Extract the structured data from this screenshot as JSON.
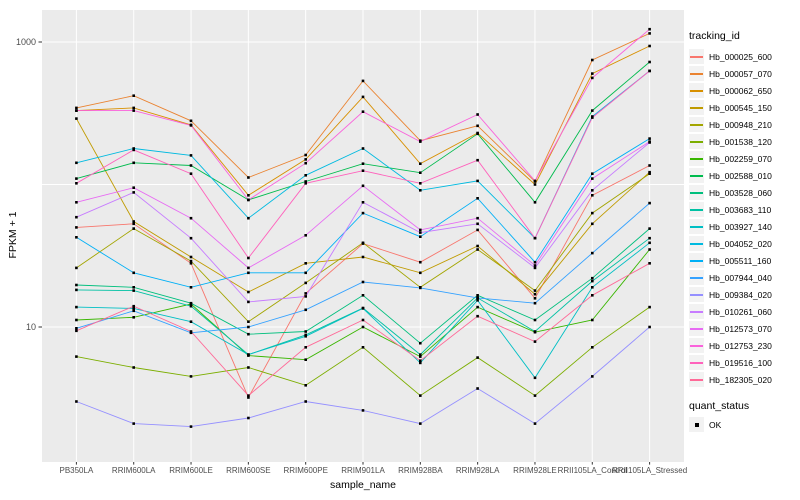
{
  "figure": {
    "background": "#FFFFFF",
    "panel_background": "#EBEBEB",
    "gridline_color": "#FFFFFF",
    "tick_label_color": "#4D4D4D",
    "axis_title_color": "#000000",
    "point_color": "#000000",
    "legend_key_background": "#F2F2F2"
  },
  "chart_data": {
    "type": "line",
    "title": "",
    "xlabel": "sample_name",
    "ylabel": "FPKM + 1",
    "y_scale": "log10",
    "y_tick_labels": [
      "1000",
      "10"
    ],
    "y_tick_values": [
      1000,
      10
    ],
    "y_gridlines": [
      10,
      100,
      1000
    ],
    "ylim": [
      1.1,
      1650
    ],
    "grid": true,
    "legend_position": "right",
    "legend_title": "tracking_id",
    "legend2_title": "quant_status",
    "legend2_items": [
      {
        "label": "OK",
        "marker": "black-square"
      }
    ],
    "point_marker": "black-square",
    "categories": [
      "PB350LA",
      "RRIM600LA",
      "RRIM600LE",
      "RRIM600SE",
      "RRIM600PE",
      "RRIM901LA",
      "RRIM928BA",
      "RRIM928LA",
      "RRIM928LE",
      "RRII105LA_Control",
      "RRII105LA_Stressed"
    ],
    "series": [
      {
        "name": "Hb_000025_600",
        "color": "#F8766D",
        "values": [
          50,
          53,
          28,
          3.2,
          17.2,
          38.5,
          28.5,
          48,
          15.9,
          84,
          136
        ]
      },
      {
        "name": "Hb_000057_070",
        "color": "#EA8331",
        "values": [
          345,
          420,
          280,
          112,
          161,
          533,
          203,
          258,
          105,
          748,
          1150
        ]
      },
      {
        "name": "Hb_000062_650",
        "color": "#D89000",
        "values": [
          330,
          345,
          262,
          84,
          150,
          412,
          140,
          230,
          100,
          600,
          938
        ]
      },
      {
        "name": "Hb_000545_150",
        "color": "#C09B00",
        "values": [
          290,
          55,
          31,
          17.6,
          28,
          31,
          24,
          37,
          17,
          53,
          122
        ]
      },
      {
        "name": "Hb_000948_210",
        "color": "#A3A500",
        "values": [
          26,
          49,
          29,
          10.9,
          20.4,
          39,
          19,
          35,
          18,
          63,
          119
        ]
      },
      {
        "name": "Hb_001538_120",
        "color": "#7CAE00",
        "values": [
          6.2,
          5.2,
          4.5,
          5.2,
          3.9,
          7.2,
          3.3,
          6.1,
          3.3,
          7.2,
          13.8
        ]
      },
      {
        "name": "Hb_002259_070",
        "color": "#39B600",
        "values": [
          11.2,
          11.7,
          14.5,
          6.3,
          5.9,
          10,
          6.2,
          13.8,
          9.2,
          11.2,
          35
        ]
      },
      {
        "name": "Hb_002588_010",
        "color": "#00BB4E",
        "values": [
          110,
          142,
          136,
          78,
          105,
          140,
          121,
          227,
          75,
          330,
          724
        ]
      },
      {
        "name": "Hb_003528_060",
        "color": "#00BF7D",
        "values": [
          19.7,
          19,
          14.7,
          8.9,
          9.3,
          16.7,
          7.7,
          16.7,
          11.2,
          22,
          49
        ]
      },
      {
        "name": "Hb_003683_110",
        "color": "#00C1A3",
        "values": [
          18.2,
          18,
          14,
          6.4,
          8.8,
          13.6,
          6.4,
          16,
          9.3,
          21,
          42
        ]
      },
      {
        "name": "Hb_003927_140",
        "color": "#00BFC4",
        "values": [
          13.8,
          13.5,
          10.9,
          6.4,
          8.6,
          13.5,
          5.6,
          15.4,
          4.4,
          19,
          39
        ]
      },
      {
        "name": "Hb_004052_020",
        "color": "#00BAE0",
        "values": [
          142,
          179,
          160,
          58,
          116,
          179,
          91,
          106,
          42,
          300,
          627
        ]
      },
      {
        "name": "Hb_005511_160",
        "color": "#00B0F6",
        "values": [
          42.6,
          24,
          19,
          24,
          24,
          63,
          43,
          80,
          28.5,
          119,
          210
        ]
      },
      {
        "name": "Hb_007944_040",
        "color": "#35A2FF",
        "values": [
          9.8,
          13,
          9.1,
          10,
          13.2,
          20.7,
          18.8,
          16,
          14.7,
          33,
          74
        ]
      },
      {
        "name": "Hb_009384_020",
        "color": "#9590FF",
        "values": [
          3.0,
          2.1,
          2.0,
          2.3,
          3.0,
          2.6,
          2.1,
          3.7,
          2.1,
          4.5,
          10
        ]
      },
      {
        "name": "Hb_010261_060",
        "color": "#C77CFF",
        "values": [
          59,
          88,
          42,
          15,
          16.4,
          75,
          46,
          53,
          26,
          91,
          197
        ]
      },
      {
        "name": "Hb_012573_070",
        "color": "#E76BF3",
        "values": [
          75,
          95,
          58,
          26,
          44,
          98,
          48,
          58,
          27,
          110,
          200
        ]
      },
      {
        "name": "Hb_012753_230",
        "color": "#FA62DB",
        "values": [
          330,
          330,
          260,
          78,
          141,
          324,
          200,
          310,
          106,
          560,
          1230
        ]
      },
      {
        "name": "Hb_019516_100",
        "color": "#FF62BC",
        "values": [
          102,
          175,
          119,
          30.5,
          102,
          125,
          102,
          148,
          42,
          295,
          627
        ]
      },
      {
        "name": "Hb_182305_020",
        "color": "#FF6A98",
        "values": [
          9.4,
          14,
          9.3,
          3.3,
          7.2,
          11.2,
          5.8,
          11.9,
          7.9,
          16.7,
          28
        ]
      }
    ]
  }
}
